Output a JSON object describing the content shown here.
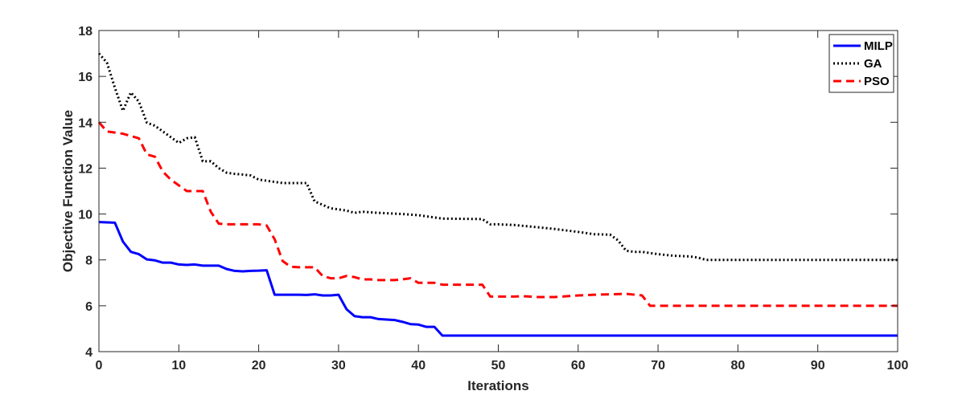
{
  "chart_data": {
    "type": "line",
    "xlabel": "Iterations",
    "ylabel": "Objective Function Value",
    "xlim": [
      0,
      100
    ],
    "ylim": [
      4,
      18
    ],
    "xticks": [
      0,
      10,
      20,
      30,
      40,
      50,
      60,
      70,
      80,
      90,
      100
    ],
    "yticks": [
      4,
      6,
      8,
      10,
      12,
      14,
      16,
      18
    ],
    "grid": false,
    "legend_position": "top-right",
    "series": [
      {
        "name": "MILP",
        "color": "#0000ff",
        "style": "solid",
        "x": [
          0,
          2,
          3,
          4,
          5,
          6,
          7,
          8,
          9,
          10,
          11,
          12,
          13,
          14,
          15,
          16,
          17,
          18,
          19,
          20,
          21,
          22,
          23,
          24,
          25,
          26,
          27,
          28,
          29,
          30,
          31,
          32,
          33,
          34,
          35,
          36,
          37,
          38,
          39,
          40,
          41,
          42,
          43,
          50,
          60,
          70,
          80,
          90,
          100
        ],
        "y": [
          9.65,
          9.62,
          8.8,
          8.35,
          8.25,
          8.02,
          7.98,
          7.88,
          7.88,
          7.8,
          7.78,
          7.8,
          7.75,
          7.75,
          7.75,
          7.6,
          7.52,
          7.5,
          7.52,
          7.53,
          7.55,
          6.48,
          6.48,
          6.48,
          6.48,
          6.47,
          6.5,
          6.45,
          6.45,
          6.48,
          5.85,
          5.55,
          5.5,
          5.5,
          5.42,
          5.4,
          5.38,
          5.3,
          5.2,
          5.18,
          5.08,
          5.08,
          4.7,
          4.7,
          4.7,
          4.7,
          4.7,
          4.7,
          4.7
        ]
      },
      {
        "name": "GA",
        "color": "#000000",
        "style": "dotted",
        "x": [
          0,
          1,
          2,
          3,
          4,
          5,
          6,
          7,
          8,
          9,
          10,
          11,
          12,
          13,
          14,
          15,
          16,
          17,
          18,
          19,
          20,
          21,
          22,
          23,
          24,
          25,
          26,
          27,
          28,
          29,
          30,
          31,
          32,
          33,
          35,
          38,
          40,
          42,
          43,
          48,
          49,
          50,
          52,
          55,
          57,
          60,
          62,
          64,
          65,
          66,
          67,
          68,
          70,
          72,
          74,
          75,
          76,
          80,
          90,
          100
        ],
        "y": [
          17.0,
          16.6,
          15.5,
          14.5,
          15.3,
          14.9,
          13.98,
          13.85,
          13.6,
          13.35,
          13.1,
          13.3,
          13.35,
          12.3,
          12.3,
          12.0,
          11.8,
          11.75,
          11.72,
          11.68,
          11.5,
          11.45,
          11.4,
          11.35,
          11.35,
          11.35,
          11.35,
          10.55,
          10.4,
          10.25,
          10.2,
          10.15,
          10.05,
          10.1,
          10.05,
          10.0,
          9.95,
          9.85,
          9.8,
          9.78,
          9.55,
          9.55,
          9.52,
          9.42,
          9.35,
          9.22,
          9.12,
          9.1,
          8.85,
          8.4,
          8.35,
          8.35,
          8.25,
          8.18,
          8.15,
          8.1,
          8.0,
          8.0,
          8.0,
          8.0
        ]
      },
      {
        "name": "PSO",
        "color": "#ff0000",
        "style": "dashed",
        "x": [
          0,
          1,
          2,
          3,
          4,
          5,
          6,
          7,
          8,
          9,
          10,
          11,
          12,
          13,
          14,
          15,
          16,
          17,
          18,
          19,
          20,
          21,
          22,
          23,
          24,
          25,
          26,
          27,
          28,
          29,
          30,
          31,
          32,
          33,
          34,
          35,
          36,
          37,
          38,
          39,
          40,
          41,
          42,
          43,
          48,
          49,
          50,
          52,
          53,
          55,
          57,
          60,
          62,
          64,
          66,
          68,
          69,
          70,
          80,
          90,
          100
        ],
        "y": [
          14.0,
          13.6,
          13.55,
          13.5,
          13.4,
          13.3,
          12.6,
          12.5,
          11.85,
          11.5,
          11.25,
          11.0,
          11.0,
          11.0,
          10.1,
          9.58,
          9.55,
          9.55,
          9.55,
          9.55,
          9.55,
          9.5,
          8.9,
          7.95,
          7.7,
          7.68,
          7.68,
          7.68,
          7.3,
          7.2,
          7.2,
          7.3,
          7.25,
          7.15,
          7.15,
          7.12,
          7.12,
          7.12,
          7.15,
          7.2,
          7.0,
          7.0,
          7.0,
          6.92,
          6.92,
          6.4,
          6.4,
          6.4,
          6.42,
          6.38,
          6.38,
          6.45,
          6.48,
          6.5,
          6.52,
          6.45,
          6.0,
          6.0,
          6.0,
          6.0,
          6.0
        ]
      }
    ]
  }
}
